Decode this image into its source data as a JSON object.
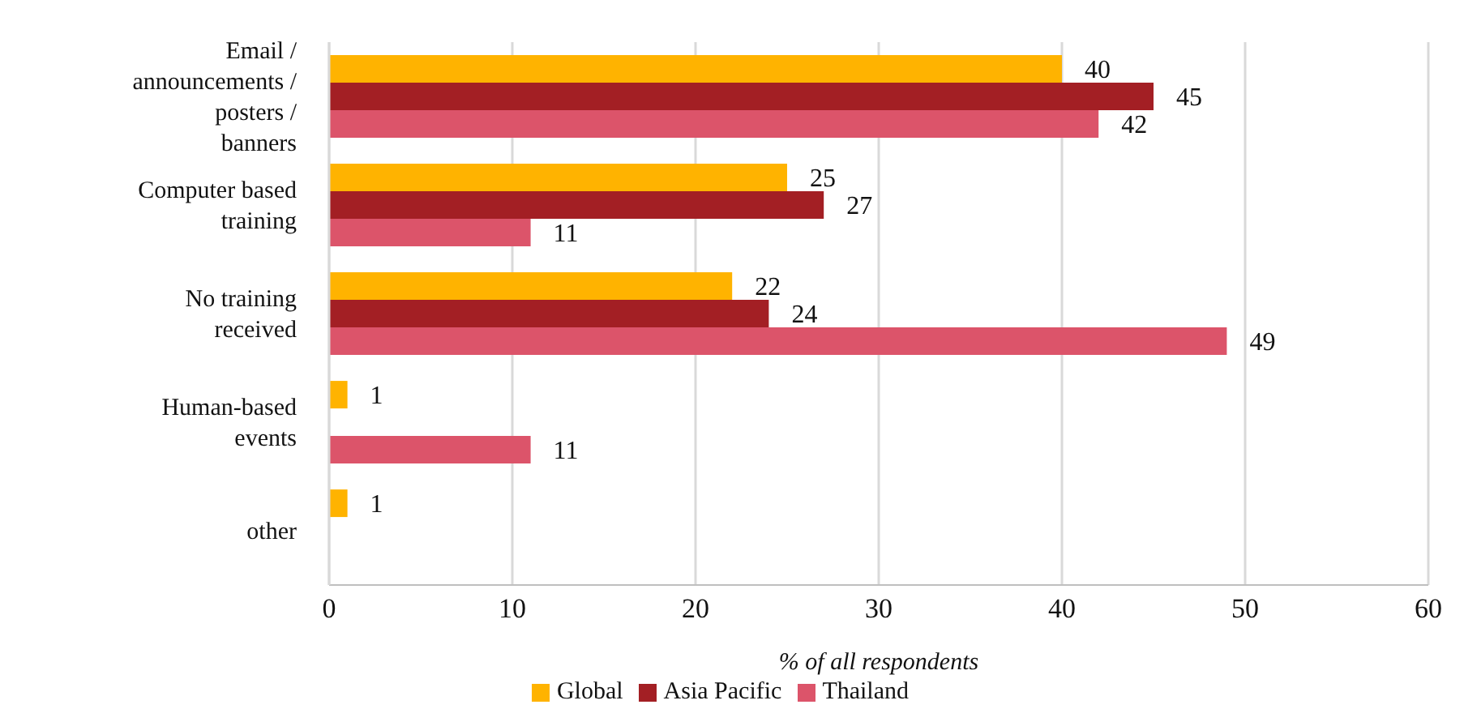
{
  "chart_data": {
    "type": "bar",
    "orientation": "horizontal",
    "xlabel": "% of all respondents",
    "categories": [
      "Email / announcements / posters / banners",
      "Computer based training",
      "No training received",
      "Human-based events",
      "other"
    ],
    "series": [
      {
        "name": "Global",
        "color": "#ffb300",
        "values": [
          40,
          25,
          22,
          1,
          1
        ]
      },
      {
        "name": "Asia Pacific",
        "color": "#a31f24",
        "values": [
          45,
          27,
          24,
          null,
          null
        ]
      },
      {
        "name": "Thailand",
        "color": "#dc546a",
        "values": [
          42,
          11,
          49,
          11,
          null
        ]
      }
    ],
    "xlim": [
      0,
      60
    ],
    "xticks": [
      0,
      10,
      20,
      30,
      40,
      50,
      60
    ],
    "grid": "x",
    "legend": "bottom",
    "data_labels": true
  }
}
